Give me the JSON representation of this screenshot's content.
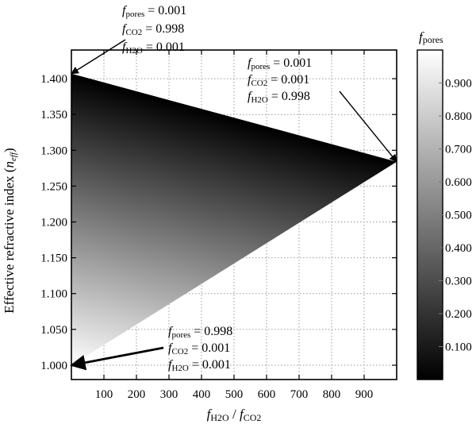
{
  "chart_data": {
    "type": "heatmap",
    "x_axis": {
      "label_main": "f",
      "label_sub1": "H2O",
      "label_sep": " / ",
      "label_main2": "f",
      "label_sub2": "CO2",
      "range": [
        0,
        1000
      ],
      "ticks": [
        100,
        200,
        300,
        400,
        500,
        600,
        700,
        800,
        900
      ],
      "tick_labels": [
        "100",
        "200",
        "300",
        "400",
        "500",
        "600",
        "700",
        "800",
        "900"
      ]
    },
    "y_axis": {
      "label_main": "Effective refractive index (",
      "label_italic": "n",
      "label_sub": "eff",
      "label_close": ")",
      "range": [
        0.98,
        1.44
      ],
      "ticks": [
        1.0,
        1.05,
        1.1,
        1.15,
        1.2,
        1.25,
        1.3,
        1.35,
        1.4
      ],
      "tick_labels": [
        "1.000",
        "1.050",
        "1.100",
        "1.150",
        "1.200",
        "1.250",
        "1.300",
        "1.350",
        "1.400"
      ]
    },
    "grid": true,
    "region_vertices": [
      {
        "x": 0,
        "y": 1.407,
        "f_pores": 0.001
      },
      {
        "x": 1000,
        "y": 1.284,
        "f_pores": 0.001
      },
      {
        "x": 0,
        "y": 1.0,
        "f_pores": 0.998
      }
    ],
    "colorbar": {
      "label_main": "f",
      "label_sub": "pores",
      "range": [
        0.0,
        1.0
      ],
      "ticks": [
        0.1,
        0.2,
        0.3,
        0.4,
        0.5,
        0.6,
        0.7,
        0.8,
        0.9
      ],
      "tick_labels": [
        "0.100",
        "0.200",
        "0.300",
        "0.400",
        "0.500",
        "0.600",
        "0.700",
        "0.800",
        "0.900"
      ],
      "low_color": "#000000",
      "high_color": "#ffffff"
    },
    "annotations": [
      {
        "id": "top-left",
        "lines": [
          {
            "main": "f",
            "sub": "pores",
            "value": " = 0.001"
          },
          {
            "main": "f",
            "sub": "CO2",
            "value": " = 0.998"
          },
          {
            "main": "f",
            "sub": "H2O",
            "value": " = 0.001"
          }
        ],
        "points_to": {
          "x": 0,
          "y": 1.407
        }
      },
      {
        "id": "right",
        "lines": [
          {
            "main": "f",
            "sub": "pores",
            "value": " = 0.001"
          },
          {
            "main": "f",
            "sub": "CO2",
            "value": " = 0.001"
          },
          {
            "main": "f",
            "sub": "H2O",
            "value": " = 0.998"
          }
        ],
        "points_to": {
          "x": 1000,
          "y": 1.284
        }
      },
      {
        "id": "bottom",
        "lines": [
          {
            "main": "f",
            "sub": "pores",
            "value": " = 0.998"
          },
          {
            "main": "f",
            "sub": "CO2",
            "value": " = 0.001"
          },
          {
            "main": "f",
            "sub": "H2O",
            "value": " = 0.001"
          }
        ],
        "points_to": {
          "x": 0,
          "y": 1.0
        }
      }
    ]
  }
}
